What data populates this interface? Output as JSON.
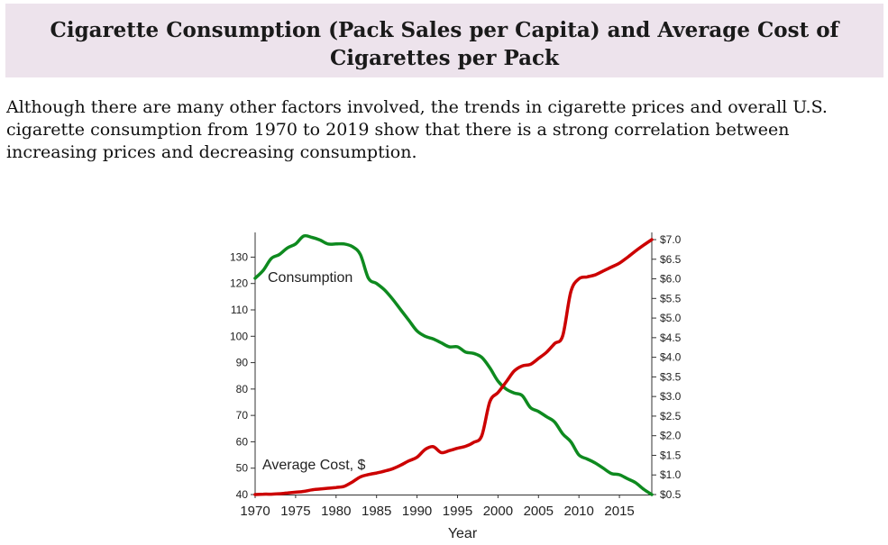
{
  "page": {
    "title": "Cigarette Consumption (Pack Sales per Capita) and Average Cost of Cigarettes per Pack",
    "intro": "Although there are many other factors involved, the trends in cigarette prices and overall U.S. cigarette consumption from 1970 to 2019 show that there is a strong correlation between increasing prices and decreasing consumption."
  },
  "chart_data": {
    "type": "line",
    "xlabel": "Year",
    "xlim": [
      1970,
      2019
    ],
    "x_ticks": [
      1970,
      1975,
      1980,
      1985,
      1990,
      1995,
      2000,
      2005,
      2010,
      2015
    ],
    "left_axis": {
      "ylim": [
        40,
        138
      ],
      "ticks": [
        40,
        50,
        60,
        70,
        80,
        90,
        100,
        110,
        120,
        130
      ]
    },
    "right_axis": {
      "ylim": [
        0.5,
        7.0
      ],
      "ticks": [
        "$0.5",
        "$1.0",
        "$1.5",
        "$2.0",
        "$2.5",
        "$3.0",
        "$3.5",
        "$4.0",
        "$4.5",
        "$5.0",
        "$5.5",
        "$6.0",
        "$6.5",
        "$7.0"
      ]
    },
    "x": [
      1970,
      1971,
      1972,
      1973,
      1974,
      1975,
      1976,
      1977,
      1978,
      1979,
      1980,
      1981,
      1982,
      1983,
      1984,
      1985,
      1986,
      1987,
      1988,
      1989,
      1990,
      1991,
      1992,
      1993,
      1994,
      1995,
      1996,
      1997,
      1998,
      1999,
      2000,
      2001,
      2002,
      2003,
      2004,
      2005,
      2006,
      2007,
      2008,
      2009,
      2010,
      2011,
      2012,
      2013,
      2014,
      2015,
      2016,
      2017,
      2018,
      2019
    ],
    "series": [
      {
        "name": "Consumption",
        "axis": "left",
        "color": "#0e8a1f",
        "values": [
          122,
          125,
          129.5,
          131,
          133.5,
          135,
          138,
          137.5,
          136.5,
          135,
          135,
          135,
          134,
          131,
          122,
          120,
          117.5,
          114,
          110,
          106,
          102,
          100,
          99,
          97.5,
          96,
          96,
          94,
          93.5,
          92,
          88,
          83,
          80,
          78.5,
          77.5,
          73,
          71.5,
          69.5,
          67.5,
          63,
          60,
          55,
          53.5,
          52,
          50,
          48,
          47.5,
          46,
          44.5,
          42,
          40
        ]
      },
      {
        "name": "Average Cost, $",
        "axis": "right",
        "color": "#cc0000",
        "values": [
          0.5,
          0.51,
          0.51,
          0.52,
          0.54,
          0.56,
          0.58,
          0.62,
          0.64,
          0.66,
          0.68,
          0.71,
          0.82,
          0.95,
          1.01,
          1.05,
          1.1,
          1.16,
          1.25,
          1.36,
          1.45,
          1.65,
          1.72,
          1.57,
          1.62,
          1.68,
          1.73,
          1.83,
          2.0,
          2.87,
          3.1,
          3.37,
          3.65,
          3.78,
          3.82,
          3.97,
          4.13,
          4.35,
          4.55,
          5.67,
          6.0,
          6.05,
          6.1,
          6.2,
          6.3,
          6.4,
          6.55,
          6.71,
          6.86,
          7.0
        ]
      }
    ],
    "annotations": [
      {
        "text": "Consumption",
        "series": "Consumption"
      },
      {
        "text": "Average Cost, $",
        "series": "Average Cost, $"
      }
    ]
  }
}
